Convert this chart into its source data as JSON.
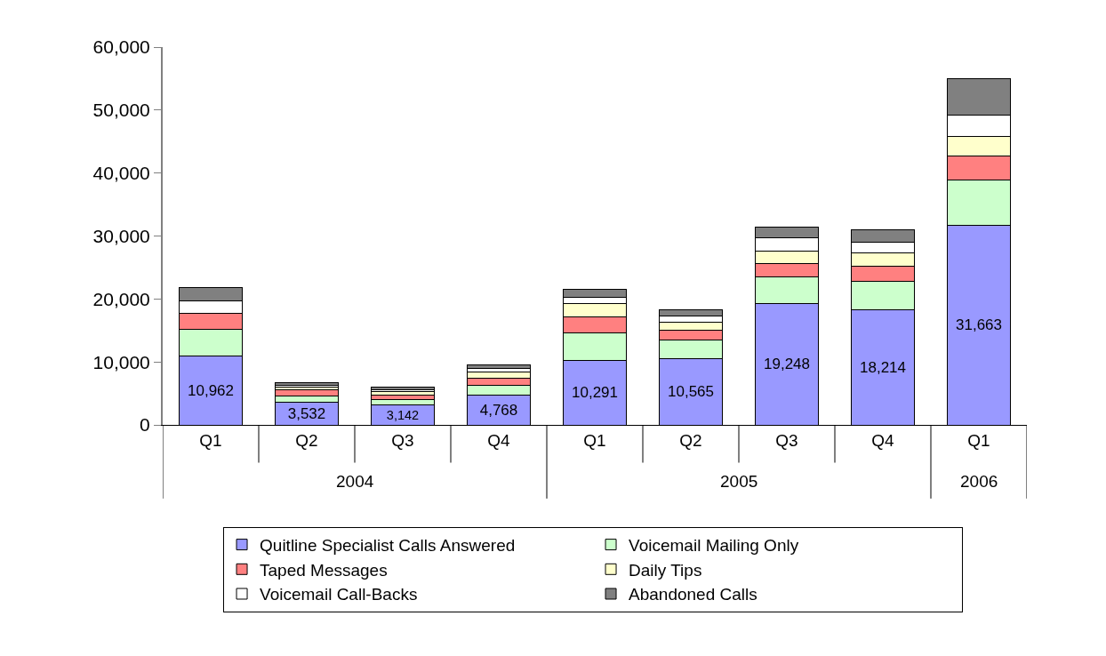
{
  "chart_data": {
    "type": "bar",
    "stacked": true,
    "categories": [
      "Q1",
      "Q2",
      "Q3",
      "Q4",
      "Q1",
      "Q2",
      "Q3",
      "Q4",
      "Q1"
    ],
    "annotations": [
      "2004",
      "2005",
      "2006"
    ],
    "series": [
      {
        "name": "Quitline Specialist Calls Answered",
        "color": "#9999ff",
        "values": [
          10962,
          3532,
          3142,
          4768,
          10291,
          10565,
          19248,
          18214,
          31663
        ],
        "value_labels": [
          "10,962",
          "3,532",
          "3,142",
          "4,768",
          "10,291",
          "10,565",
          "19,248",
          "18,214",
          "31,663"
        ]
      },
      {
        "name": "Voicemail Mailing Only",
        "color": "#ccffcc",
        "values": [
          4200,
          1100,
          900,
          1500,
          4300,
          2900,
          4200,
          4600,
          7300
        ]
      },
      {
        "name": "Taped Messages",
        "color": "#ff8080",
        "values": [
          2600,
          900,
          700,
          1200,
          2500,
          1600,
          2200,
          2400,
          3800
        ]
      },
      {
        "name": "Daily Tips",
        "color": "#ffffcc",
        "values": [
          0,
          400,
          500,
          1000,
          2200,
          1300,
          1900,
          2100,
          3000
        ]
      },
      {
        "name": "Voicemail Call-Backs",
        "color": "#ffffff",
        "values": [
          2000,
          400,
          400,
          500,
          1000,
          1000,
          2200,
          1700,
          3400
        ]
      },
      {
        "name": "Abandoned Calls",
        "color": "#808080",
        "values": [
          2100,
          400,
          400,
          600,
          1300,
          900,
          1700,
          2000,
          5800
        ]
      }
    ],
    "ylim": [
      0,
      60000
    ],
    "yticks": [
      0,
      {
        "value": 10000,
        "label": "10,000"
      },
      {
        "value": 20000,
        "label": "20,000"
      },
      {
        "value": 30000,
        "label": "30,000"
      },
      {
        "value": 40000,
        "label": "40,000"
      },
      {
        "value": 50000,
        "label": "50,000"
      },
      {
        "value": 60000,
        "label": "60,000"
      }
    ],
    "legend": "bottom"
  }
}
